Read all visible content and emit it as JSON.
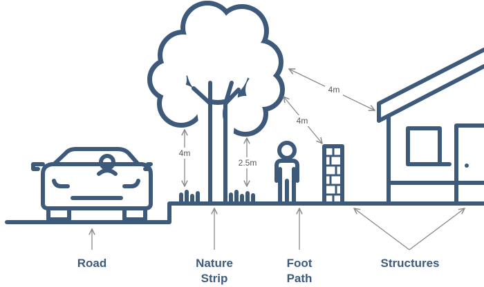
{
  "zones": [
    {
      "lines": [
        "Road"
      ]
    },
    {
      "lines": [
        "Nature",
        "Strip"
      ]
    },
    {
      "lines": [
        "Foot",
        "Path"
      ]
    },
    {
      "lines": [
        "Structures"
      ]
    }
  ],
  "dimensions": [
    "4m",
    "2.5m",
    "4m",
    "4m"
  ]
}
